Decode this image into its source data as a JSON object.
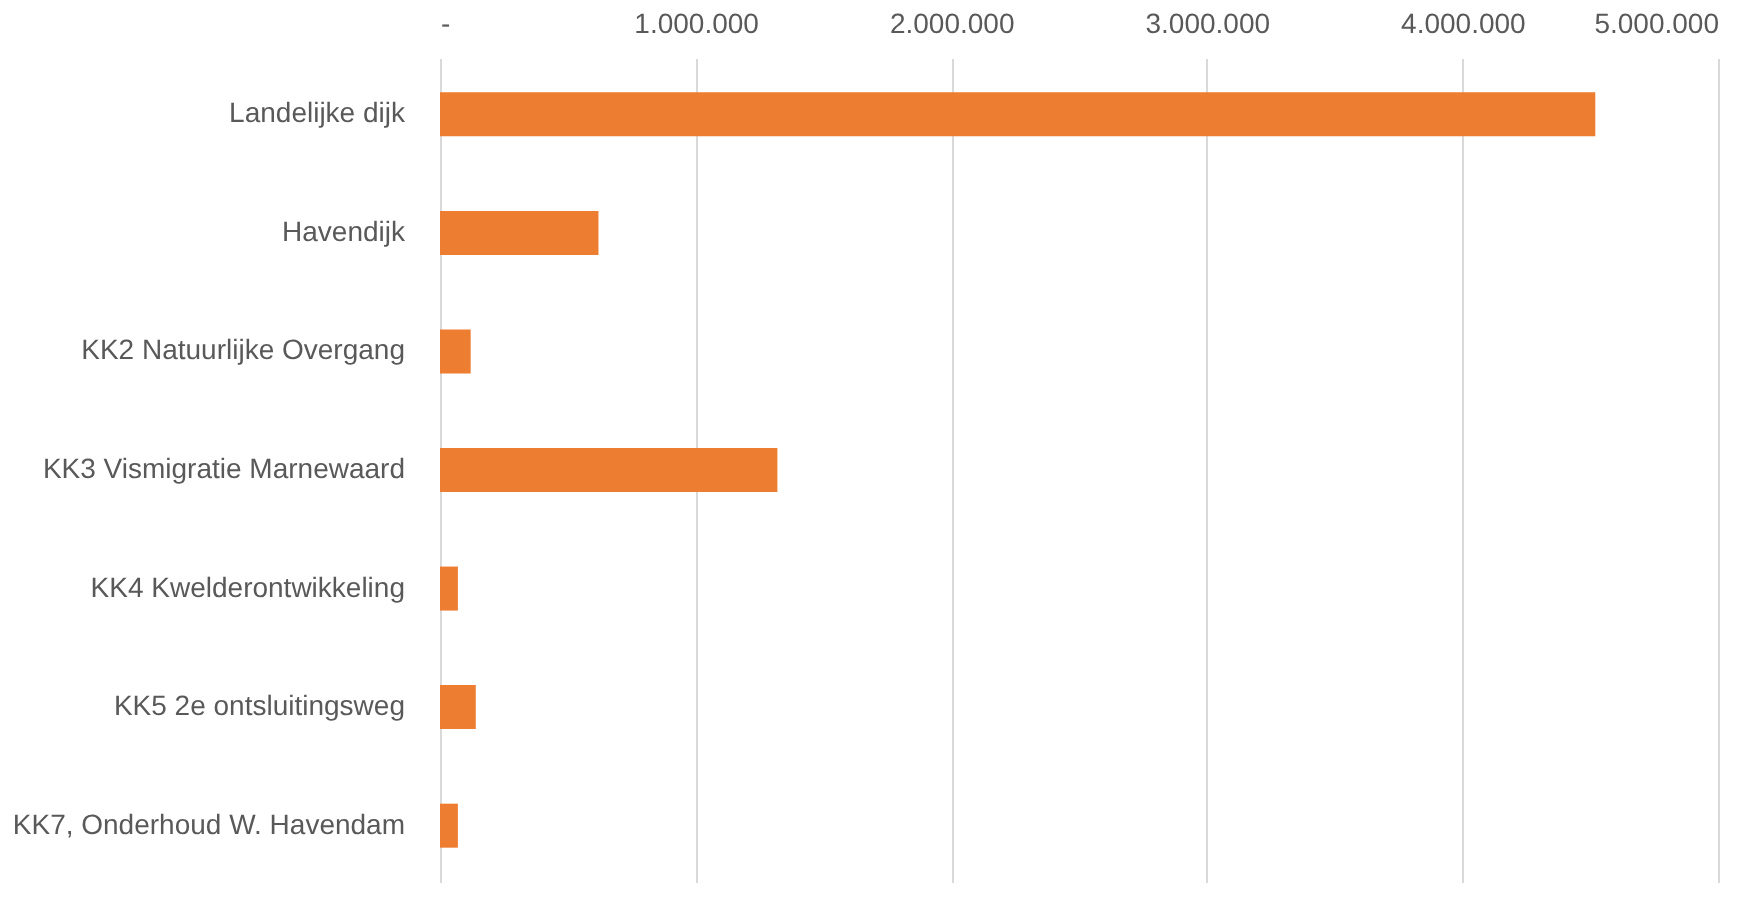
{
  "chart_data": {
    "type": "bar",
    "orientation": "horizontal",
    "categories": [
      "Landelijke dijk",
      "Havendijk",
      "KK2 Natuurlijke Overgang",
      "KK3 Vismigratie Marnewaard",
      "KK4 Kwelderontwikkeling",
      "KK5 2e ontsluitingsweg",
      "KK7, Onderhoud W. Havendam"
    ],
    "values": [
      4520000,
      620000,
      120000,
      1320000,
      70000,
      140000,
      70000
    ],
    "color": "#ed7d31",
    "xlim": [
      0,
      5000000
    ],
    "xticks": [
      {
        "value": 0,
        "label": "-"
      },
      {
        "value": 1000000,
        "label": "1.000.000"
      },
      {
        "value": 2000000,
        "label": "2.000.000"
      },
      {
        "value": 3000000,
        "label": "3.000.000"
      },
      {
        "value": 4000000,
        "label": "4.000.000"
      },
      {
        "value": 5000000,
        "label": "5.000.000"
      }
    ],
    "grid": "x"
  }
}
